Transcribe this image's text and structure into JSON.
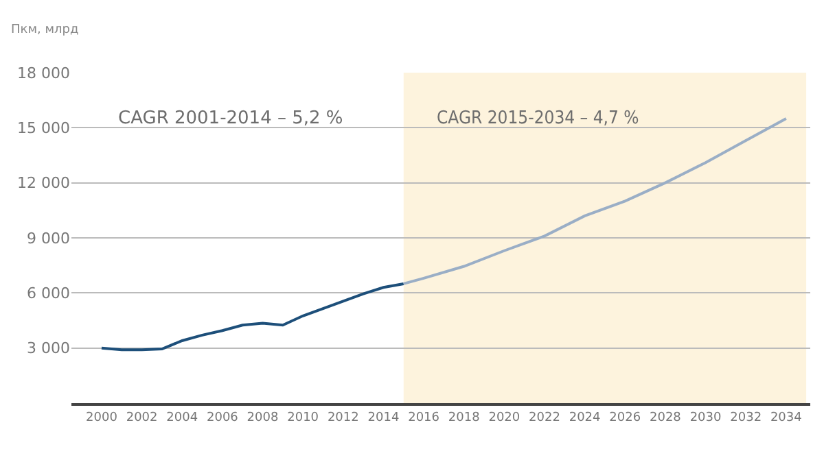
{
  "chart_data": {
    "type": "line",
    "ylabel": "Пкм, млрд",
    "series": [
      {
        "color": "#1d4f7a",
        "x": [
          2000,
          2001,
          2002,
          2003,
          2004,
          2005,
          2006,
          2007,
          2008,
          2009,
          2010,
          2011,
          2012,
          2013,
          2014,
          2015
        ],
        "values": [
          3000,
          2900,
          2900,
          2950,
          3400,
          3700,
          3950,
          4250,
          4350,
          4250,
          4750,
          5150,
          5550,
          5950,
          6300,
          6500
        ]
      },
      {
        "color": "#9aaec6",
        "x": [
          2015,
          2016,
          2018,
          2020,
          2022,
          2024,
          2026,
          2028,
          2030,
          2032,
          2034
        ],
        "values": [
          6500,
          6800,
          7450,
          8300,
          9100,
          10200,
          11000,
          12000,
          13100,
          14300,
          15500
        ]
      }
    ],
    "xlim": [
      1998.5,
      2035.2
    ],
    "xticks": [
      2000,
      2002,
      2004,
      2006,
      2008,
      2010,
      2012,
      2014,
      2016,
      2018,
      2020,
      2022,
      2024,
      2026,
      2028,
      2030,
      2032,
      2034
    ],
    "ylim": [
      0,
      18000
    ],
    "yticks": [
      {
        "value": 0,
        "label": null
      },
      {
        "value": 3000,
        "label": "3 000"
      },
      {
        "value": 6000,
        "label": "6 000"
      },
      {
        "value": 9000,
        "label": "9 000"
      },
      {
        "value": 12000,
        "label": "12 000"
      },
      {
        "value": 15000,
        "label": "15 000"
      },
      {
        "value": 18000,
        "label": "18 000"
      }
    ],
    "grid": "y",
    "marker": "none",
    "line_style": "solid",
    "bands": [
      {
        "axis": "x",
        "from": 2015,
        "to": 2035,
        "color": "#fdf3dd",
        "label": "CAGR 2015-2034 – 4,7 %"
      }
    ],
    "annotations": [
      "CAGR 2001-2014 – 5,2 %"
    ]
  }
}
